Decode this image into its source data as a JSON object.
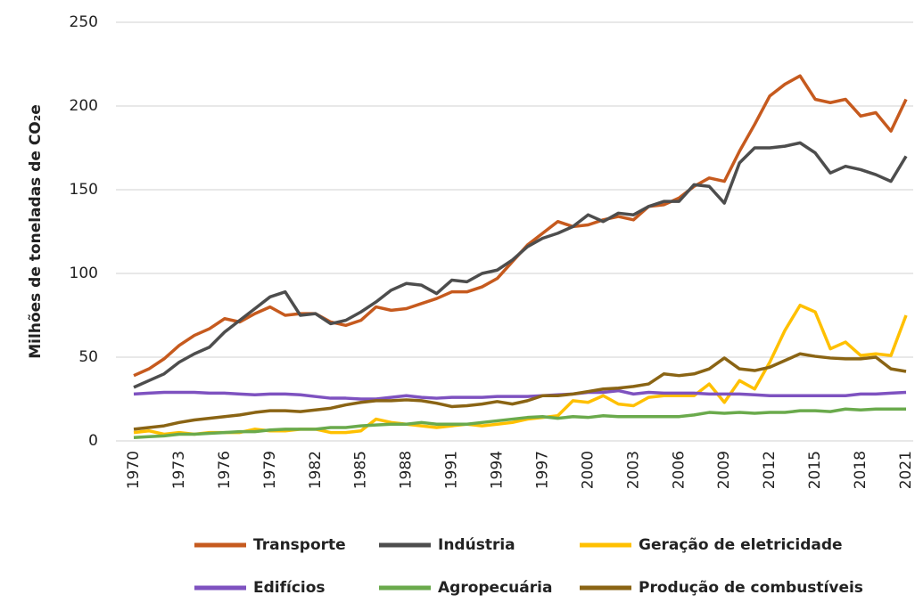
{
  "chart_data": {
    "type": "line",
    "y_label": "Milhões de toneladas de CO₂e",
    "x": [
      1970,
      1971,
      1972,
      1973,
      1974,
      1975,
      1976,
      1977,
      1978,
      1979,
      1980,
      1981,
      1982,
      1983,
      1984,
      1985,
      1986,
      1987,
      1988,
      1989,
      1990,
      1991,
      1992,
      1993,
      1994,
      1995,
      1996,
      1997,
      1998,
      1999,
      2000,
      2001,
      2002,
      2003,
      2004,
      2005,
      2006,
      2007,
      2008,
      2009,
      2010,
      2011,
      2012,
      2013,
      2014,
      2015,
      2016,
      2017,
      2018,
      2019,
      2020,
      2021
    ],
    "xlim": [
      1970,
      2021
    ],
    "xticks": [
      1970,
      1973,
      1976,
      1979,
      1982,
      1985,
      1988,
      1991,
      1994,
      1997,
      2000,
      2003,
      2006,
      2009,
      2012,
      2015,
      2018,
      2021
    ],
    "ylim": [
      0,
      250
    ],
    "yticks": [
      0,
      50,
      100,
      150,
      200,
      250
    ],
    "grid": true,
    "legend": "bottom",
    "series": [
      {
        "name": "Transporte",
        "color": "#c65a1e",
        "values": [
          39,
          43,
          49,
          57,
          63,
          67,
          73,
          71,
          76,
          80,
          75,
          76,
          76,
          71,
          69,
          72,
          80,
          78,
          79,
          82,
          85,
          89,
          89,
          92,
          97,
          107,
          117,
          124,
          131,
          128,
          129,
          132,
          134,
          132,
          140,
          141,
          145,
          152,
          157,
          155,
          173,
          189,
          206,
          213,
          218,
          204,
          202,
          204,
          194,
          196,
          185,
          204
        ]
      },
      {
        "name": "Indústria",
        "color": "#4d4d4d",
        "values": [
          32,
          36,
          40,
          47,
          52,
          56,
          65,
          72,
          79,
          86,
          89,
          75,
          76,
          70,
          72,
          77,
          83,
          90,
          94,
          93,
          88,
          96,
          95,
          100,
          102,
          108,
          116,
          121,
          124,
          128,
          135,
          131,
          136,
          135,
          140,
          143,
          143,
          153,
          152,
          142,
          166,
          175,
          175,
          176,
          178,
          172,
          160,
          164,
          162,
          159,
          155,
          170
        ]
      },
      {
        "name": "Geração de eletricidade",
        "color": "#ffc000",
        "values": [
          5,
          6,
          4,
          5,
          4,
          5,
          5,
          5,
          7,
          6,
          6,
          7,
          7,
          5,
          5,
          6,
          13,
          11,
          10,
          9,
          8,
          9,
          10,
          9,
          10,
          11,
          13,
          14,
          15,
          24,
          23,
          27,
          22,
          21,
          26,
          27,
          27,
          27,
          34,
          23,
          36,
          31,
          47,
          66,
          81,
          77,
          55,
          59,
          51,
          52,
          51,
          75
        ]
      },
      {
        "name": "Edifícios",
        "color": "#7e52c0",
        "values": [
          28,
          28.5,
          29,
          29,
          29,
          28.5,
          28.5,
          28,
          27.5,
          28,
          28,
          27.5,
          26.5,
          25.5,
          25.5,
          25,
          25,
          26,
          27,
          26,
          25.5,
          26,
          26,
          26,
          26.5,
          26.5,
          26.5,
          27,
          27.5,
          28,
          29,
          29,
          30,
          28,
          29,
          28.5,
          28.5,
          28.5,
          28,
          28,
          28,
          27.5,
          27,
          27,
          27,
          27,
          27,
          27,
          28,
          28,
          28.5,
          29
        ]
      },
      {
        "name": "Agropecuária",
        "color": "#6aaa4c",
        "values": [
          2,
          2.5,
          3,
          4,
          4,
          4.5,
          5,
          5.5,
          5.5,
          6.5,
          7,
          7,
          7,
          8,
          8,
          9,
          9.5,
          10,
          10,
          11,
          10,
          10,
          10,
          11,
          12,
          13,
          14,
          14.5,
          13.5,
          14.5,
          14,
          15,
          14.5,
          14.5,
          14.5,
          14.5,
          14.5,
          15.5,
          17,
          16.5,
          17,
          16.5,
          17,
          17,
          18,
          18,
          17.5,
          19,
          18.5,
          19,
          19,
          19
        ]
      },
      {
        "name": "Produção de combustíveis",
        "color": "#8a6414",
        "values": [
          7,
          8,
          9,
          11,
          12.5,
          13.5,
          14.5,
          15.5,
          17,
          18,
          18,
          17.5,
          18.5,
          19.5,
          21.5,
          23,
          24,
          24,
          24.5,
          24,
          22.5,
          20.5,
          21,
          22,
          23.5,
          22,
          24,
          27,
          27,
          28,
          29.5,
          31,
          31.5,
          32.5,
          34,
          40,
          39,
          40,
          43,
          49.5,
          43,
          42,
          44,
          48,
          52,
          50.5,
          49.5,
          49,
          49,
          50,
          43,
          41.5
        ]
      }
    ]
  }
}
